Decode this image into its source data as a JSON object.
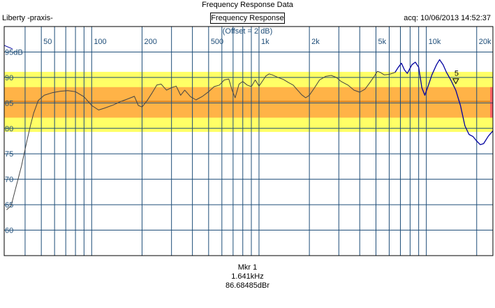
{
  "window": {
    "title": "Frequency Response Data"
  },
  "header": {
    "app_name": "Liberty -praxis-",
    "acquired": "acq: 10/06/2013 14:52:37",
    "view_tab": "Frequency Response",
    "offset_note": "(Offset = 2 dB)"
  },
  "colors": {
    "band_outer": "#ffff66",
    "band_inner": "#ffb347",
    "grid": "#1f4e79",
    "trace_light": "#3a3a3a",
    "trace_dark": "#0000a0"
  },
  "chart_data": {
    "type": "line",
    "x_scale": "log",
    "xlim": [
      30,
      25000
    ],
    "ylim": [
      55,
      100
    ],
    "y_unit": "dB",
    "x_tick_labels": [
      {
        "value": 50,
        "label": "50"
      },
      {
        "value": 100,
        "label": "100"
      },
      {
        "value": 200,
        "label": "200"
      },
      {
        "value": 500,
        "label": "500"
      },
      {
        "value": 1000,
        "label": "1k"
      },
      {
        "value": 2000,
        "label": "2k"
      },
      {
        "value": 5000,
        "label": "5k"
      },
      {
        "value": 10000,
        "label": "10k"
      },
      {
        "value": 20000,
        "label": "20k"
      }
    ],
    "y_tick_labels": [
      {
        "value": 95,
        "label": "95dB"
      },
      {
        "value": 90,
        "label": "90"
      },
      {
        "value": 85,
        "label": "85"
      },
      {
        "value": 80,
        "label": "80"
      },
      {
        "value": 75,
        "label": "75"
      },
      {
        "value": 70,
        "label": "70"
      },
      {
        "value": 65,
        "label": "65"
      },
      {
        "value": 60,
        "label": "60"
      }
    ],
    "bands": [
      {
        "from": 79.3,
        "to": 91.1,
        "color": "#ffff66"
      },
      {
        "from": 82.1,
        "to": 88.1,
        "color": "#ffb347"
      }
    ],
    "reference_line": 85.3,
    "series": [
      {
        "color": "#444444",
        "points": [
          [
            31,
            64.0
          ],
          [
            33,
            64.8
          ],
          [
            35,
            68
          ],
          [
            38,
            72.5
          ],
          [
            41,
            77.5
          ],
          [
            43,
            80.5
          ],
          [
            45,
            83
          ],
          [
            48,
            85.5
          ],
          [
            52,
            86.5
          ],
          [
            58,
            87
          ],
          [
            65,
            87.3
          ],
          [
            72,
            87.4
          ],
          [
            80,
            87.2
          ],
          [
            90,
            86.2
          ],
          [
            100,
            84.5
          ],
          [
            110,
            83.6
          ],
          [
            120,
            84
          ],
          [
            135,
            84.6
          ],
          [
            150,
            85.3
          ],
          [
            165,
            85.8
          ],
          [
            180,
            86.3
          ],
          [
            190,
            84.5
          ],
          [
            200,
            84.2
          ],
          [
            215,
            85.5
          ],
          [
            230,
            87
          ],
          [
            245,
            88.5
          ],
          [
            260,
            88.7
          ],
          [
            280,
            87.5
          ],
          [
            300,
            88
          ],
          [
            320,
            88.3
          ],
          [
            340,
            86.5
          ],
          [
            360,
            87.5
          ],
          [
            390,
            86.2
          ],
          [
            420,
            85.6
          ],
          [
            460,
            86.3
          ],
          [
            500,
            87.2
          ],
          [
            540,
            88.2
          ],
          [
            580,
            88.5
          ],
          [
            620,
            89.5
          ],
          [
            660,
            89.7
          ],
          [
            690,
            87.5
          ],
          [
            720,
            86
          ],
          [
            760,
            88.7
          ],
          [
            800,
            89.2
          ],
          [
            850,
            88.5
          ],
          [
            900,
            88.2
          ],
          [
            950,
            89.5
          ],
          [
            1000,
            88.3
          ],
          [
            1050,
            89.3
          ],
          [
            1100,
            90.3
          ],
          [
            1150,
            90.7
          ],
          [
            1200,
            90.5
          ],
          [
            1300,
            90
          ],
          [
            1400,
            89.6
          ],
          [
            1500,
            89
          ],
          [
            1600,
            88.5
          ],
          [
            1700,
            87.5
          ],
          [
            1800,
            86.6
          ],
          [
            1900,
            86
          ],
          [
            2000,
            86.5
          ],
          [
            2150,
            88
          ],
          [
            2300,
            89.5
          ],
          [
            2500,
            90.2
          ],
          [
            2700,
            90.4
          ],
          [
            2900,
            90
          ],
          [
            3100,
            89.2
          ],
          [
            3400,
            88.5
          ],
          [
            3700,
            87.5
          ],
          [
            4000,
            87.1
          ],
          [
            4300,
            87.7
          ],
          [
            4600,
            89
          ],
          [
            4900,
            90.3
          ],
          [
            5100,
            91.2
          ],
          [
            5300,
            91
          ],
          [
            5600,
            90.5
          ],
          [
            6000,
            90.6
          ],
          [
            6500,
            91
          ]
        ]
      },
      {
        "color": "#0000a0",
        "points": [
          [
            6500,
            91
          ],
          [
            6800,
            92
          ],
          [
            7100,
            92.8
          ],
          [
            7400,
            91.5
          ],
          [
            7700,
            90.8
          ],
          [
            8200,
            92.5
          ],
          [
            8600,
            93
          ],
          [
            9000,
            92
          ],
          [
            9400,
            88
          ],
          [
            9800,
            86.5
          ],
          [
            10300,
            88.5
          ],
          [
            10800,
            90.5
          ],
          [
            11500,
            92.5
          ],
          [
            12000,
            93.5
          ],
          [
            12600,
            92.5
          ],
          [
            13200,
            91
          ],
          [
            14000,
            89.5
          ],
          [
            15000,
            87.5
          ],
          [
            16000,
            84.5
          ],
          [
            17000,
            80.5
          ],
          [
            18000,
            78.8
          ],
          [
            19000,
            78.4
          ],
          [
            20000,
            77.5
          ],
          [
            21000,
            76.8
          ],
          [
            22000,
            77
          ],
          [
            23500,
            78.5
          ],
          [
            25000,
            79.5
          ]
        ]
      }
    ],
    "marker": {
      "label": "5",
      "x": 15000,
      "y": 89.2
    }
  },
  "readout": {
    "title": "Mkr 1",
    "frequency": "1.641kHz",
    "level": "86.68485dBr"
  }
}
